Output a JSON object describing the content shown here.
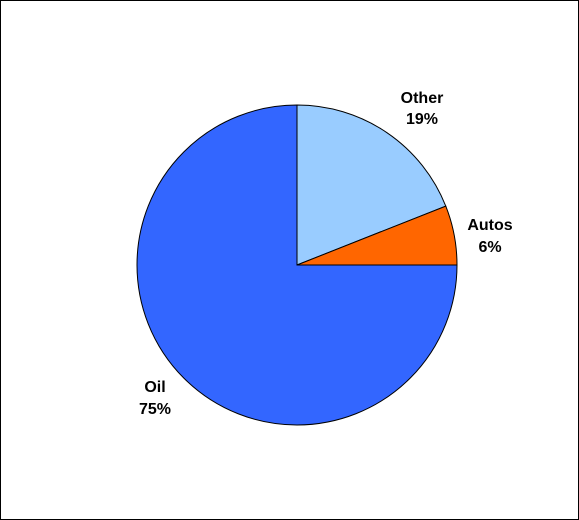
{
  "chart_data": {
    "type": "pie",
    "title": "",
    "slices": [
      {
        "label": "Other",
        "value": 19,
        "percent_label": "19%",
        "color": "#99CCFF"
      },
      {
        "label": "Autos",
        "value": 6,
        "percent_label": "6%",
        "color": "#FF6600"
      },
      {
        "label": "Oil",
        "value": 75,
        "percent_label": "75%",
        "color": "#3366FF"
      }
    ],
    "start_angle_deg": 0,
    "direction": "clockwise",
    "legend": "none",
    "slice_outline_color": "#000000",
    "background_color": "#FFFFFF"
  }
}
